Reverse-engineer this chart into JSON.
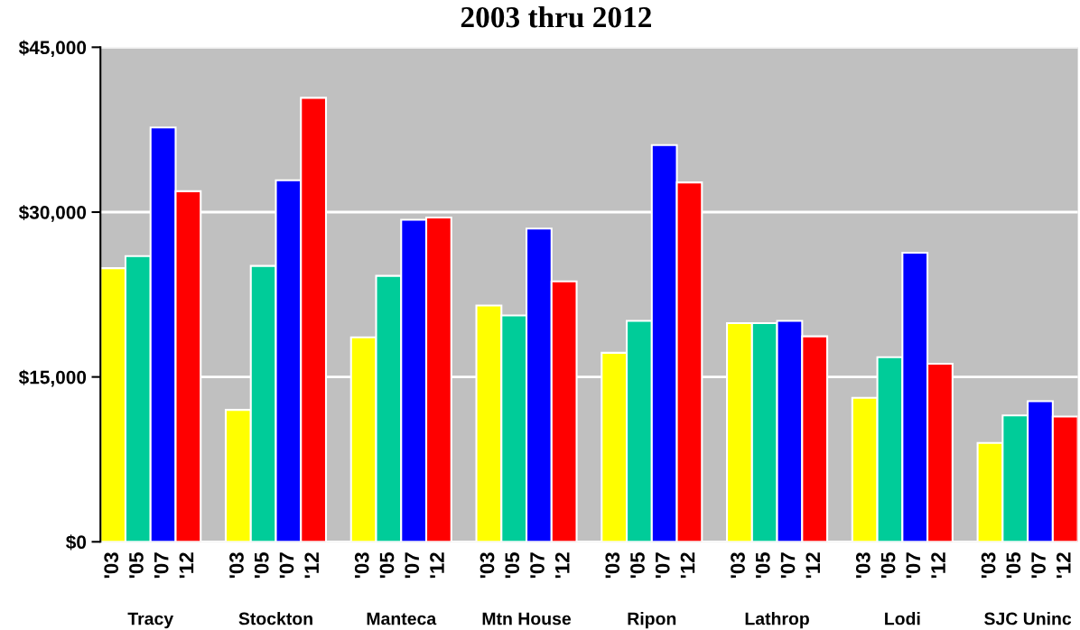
{
  "chart_data": {
    "type": "bar",
    "title": "2003 thru 2012",
    "categories": [
      "Tracy",
      "Stockton",
      "Manteca",
      "Mtn House",
      "Ripon",
      "Lathrop",
      "Lodi",
      "SJC Uninc"
    ],
    "series": [
      {
        "name": "'03",
        "color": "#ffff00",
        "values": [
          24900,
          12000,
          18600,
          21500,
          17200,
          19900,
          13100,
          9000
        ]
      },
      {
        "name": "'05",
        "color": "#00cc99",
        "values": [
          26000,
          25100,
          24200,
          20600,
          20100,
          19900,
          16800,
          11500
        ]
      },
      {
        "name": "'07",
        "color": "#0000ff",
        "values": [
          37700,
          32900,
          29300,
          28500,
          36100,
          20100,
          26300,
          12800
        ]
      },
      {
        "name": "'12",
        "color": "#ff0000",
        "values": [
          31900,
          40400,
          29500,
          23700,
          32700,
          18700,
          16200,
          11400
        ]
      }
    ],
    "ylim": [
      0,
      45000
    ],
    "yticks": [
      {
        "value": 0,
        "label": "$0"
      },
      {
        "value": 15000,
        "label": "$15,000"
      },
      {
        "value": 30000,
        "label": "$30,000"
      },
      {
        "value": 45000,
        "label": "$45,000"
      }
    ],
    "grid": "y"
  }
}
